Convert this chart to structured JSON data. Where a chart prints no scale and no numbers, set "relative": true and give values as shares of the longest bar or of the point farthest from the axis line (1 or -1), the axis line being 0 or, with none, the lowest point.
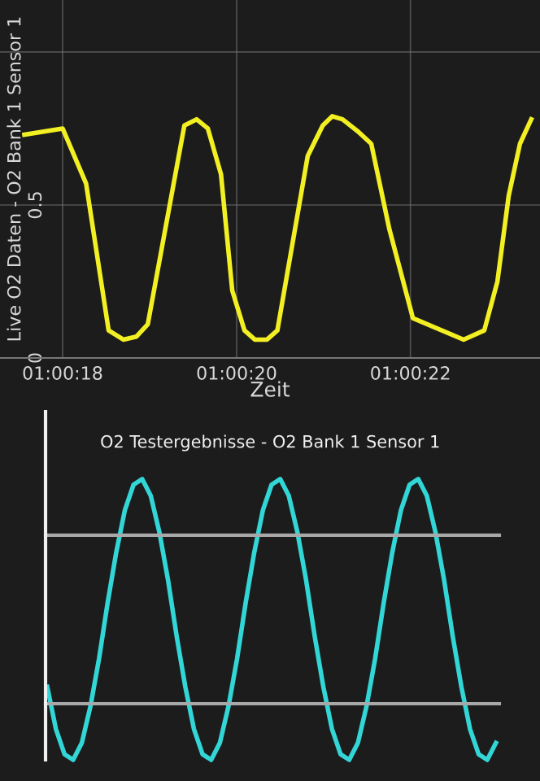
{
  "chart_data": [
    {
      "type": "line",
      "xlabel": "Zeit",
      "ylabel": "Live O2 Daten - O2 Bank 1 Sensor 1",
      "grid": true,
      "marker": "none",
      "line_style": "solid",
      "xlim": [
        1.0048,
        1.006525
      ],
      "ylim": [
        0,
        1.17
      ],
      "xticks": [
        {
          "value": 1.005,
          "label": "01:00:18"
        },
        {
          "value": 1.005556,
          "label": "01:00:20"
        },
        {
          "value": 1.006111,
          "label": "01:00:22"
        }
      ],
      "yticks": [
        0,
        0.5,
        {
          "value": 1,
          "label": null
        }
      ],
      "series": [
        {
          "color": "#f2f022",
          "x": [
            1.004878,
            1.005,
            1.005075,
            1.005147,
            1.005194,
            1.005236,
            1.005272,
            1.005389,
            1.005428,
            1.005464,
            1.005506,
            1.005542,
            1.005581,
            1.005614,
            1.005653,
            1.005686,
            1.005783,
            1.005831,
            1.005861,
            1.005894,
            1.005944,
            1.005986,
            1.006044,
            1.006119,
            1.006281,
            1.006347,
            1.006389,
            1.006425,
            1.006461,
            1.006497
          ],
          "values": [
            0.73,
            0.75,
            0.57,
            0.09,
            0.06,
            0.07,
            0.11,
            0.76,
            0.78,
            0.75,
            0.6,
            0.22,
            0.09,
            0.06,
            0.06,
            0.09,
            0.66,
            0.76,
            0.79,
            0.78,
            0.74,
            0.7,
            0.42,
            0.13,
            0.06,
            0.09,
            0.25,
            0.53,
            0.7,
            0.78
          ]
        }
      ]
    },
    {
      "type": "line",
      "title": "O2 Testergebnisse - O2 Bank 1 Sensor 1",
      "relative": true,
      "grid": false,
      "marker": "none",
      "line_style": "solid",
      "categories": [
        null,
        null,
        null,
        null,
        null,
        null,
        null,
        null,
        null,
        null,
        null,
        null,
        null,
        null,
        null,
        null,
        null,
        null,
        null,
        null,
        null,
        null,
        null,
        null,
        null,
        null,
        null,
        null,
        null,
        null,
        null,
        null,
        null,
        null,
        null,
        null,
        null,
        null,
        null,
        null,
        null,
        null,
        null,
        null,
        null,
        null,
        null,
        null,
        null,
        null,
        null,
        null,
        null
      ],
      "ref_lines": [
        {
          "axis": "y",
          "value": 0.8,
          "color": "#a8a8a8"
        },
        {
          "axis": "y",
          "value": 0.2,
          "color": "#a8a8a8"
        }
      ],
      "series": [
        {
          "color": "#33d6d6",
          "values": [
            0.26,
            0.11,
            0.02,
            0.0,
            0.06,
            0.19,
            0.36,
            0.56,
            0.74,
            0.89,
            0.98,
            1.0,
            0.94,
            0.81,
            0.64,
            0.44,
            0.26,
            0.11,
            0.02,
            0.0,
            0.06,
            0.19,
            0.36,
            0.56,
            0.74,
            0.89,
            0.98,
            1.0,
            0.94,
            0.81,
            0.64,
            0.44,
            0.26,
            0.11,
            0.02,
            0.0,
            0.06,
            0.19,
            0.36,
            0.56,
            0.74,
            0.89,
            0.98,
            1.0,
            0.94,
            0.81,
            0.64,
            0.44,
            0.26,
            0.11,
            0.02,
            0.0,
            0.06
          ]
        }
      ]
    }
  ]
}
